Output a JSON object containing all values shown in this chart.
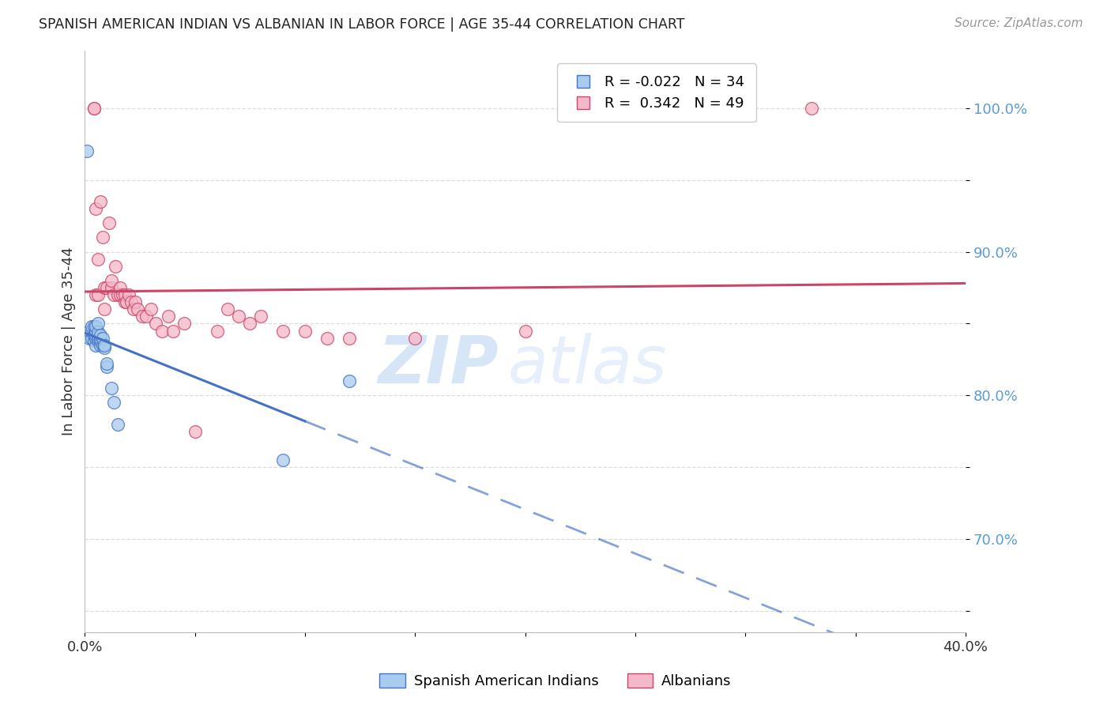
{
  "title": "SPANISH AMERICAN INDIAN VS ALBANIAN IN LABOR FORCE | AGE 35-44 CORRELATION CHART",
  "source": "Source: ZipAtlas.com",
  "ylabel": "In Labor Force | Age 35-44",
  "xmin": 0.0,
  "xmax": 0.4,
  "ymin": 0.635,
  "ymax": 1.04,
  "blue_R": -0.022,
  "blue_N": 34,
  "pink_R": 0.342,
  "pink_N": 49,
  "blue_label": "Spanish American Indians",
  "pink_label": "Albanians",
  "blue_color": "#A8CCEE",
  "pink_color": "#F5B8C8",
  "blue_line_color": "#4472C4",
  "pink_line_color": "#CC4466",
  "blue_scatter_x": [
    0.001,
    0.002,
    0.002,
    0.003,
    0.003,
    0.003,
    0.004,
    0.004,
    0.004,
    0.005,
    0.005,
    0.005,
    0.005,
    0.005,
    0.006,
    0.006,
    0.006,
    0.006,
    0.006,
    0.007,
    0.007,
    0.007,
    0.007,
    0.008,
    0.008,
    0.009,
    0.009,
    0.01,
    0.01,
    0.012,
    0.013,
    0.015,
    0.09,
    0.12
  ],
  "blue_scatter_y": [
    0.97,
    0.84,
    0.845,
    0.84,
    0.845,
    0.848,
    0.838,
    0.842,
    0.848,
    0.835,
    0.84,
    0.842,
    0.845,
    0.848,
    0.838,
    0.84,
    0.842,
    0.844,
    0.85,
    0.835,
    0.838,
    0.84,
    0.842,
    0.835,
    0.84,
    0.833,
    0.835,
    0.82,
    0.822,
    0.805,
    0.795,
    0.78,
    0.755,
    0.81
  ],
  "pink_scatter_x": [
    0.004,
    0.004,
    0.005,
    0.005,
    0.006,
    0.006,
    0.007,
    0.008,
    0.009,
    0.009,
    0.01,
    0.011,
    0.012,
    0.012,
    0.013,
    0.014,
    0.015,
    0.016,
    0.016,
    0.017,
    0.018,
    0.018,
    0.019,
    0.02,
    0.021,
    0.022,
    0.023,
    0.024,
    0.026,
    0.028,
    0.03,
    0.032,
    0.035,
    0.038,
    0.04,
    0.045,
    0.05,
    0.06,
    0.065,
    0.07,
    0.075,
    0.08,
    0.09,
    0.1,
    0.11,
    0.12,
    0.15,
    0.2,
    0.33
  ],
  "pink_scatter_y": [
    1.0,
    1.0,
    0.93,
    0.87,
    0.895,
    0.87,
    0.935,
    0.91,
    0.875,
    0.86,
    0.875,
    0.92,
    0.875,
    0.88,
    0.87,
    0.89,
    0.87,
    0.87,
    0.875,
    0.87,
    0.865,
    0.87,
    0.865,
    0.87,
    0.865,
    0.86,
    0.865,
    0.86,
    0.855,
    0.855,
    0.86,
    0.85,
    0.845,
    0.855,
    0.845,
    0.85,
    0.775,
    0.845,
    0.86,
    0.855,
    0.85,
    0.855,
    0.845,
    0.845,
    0.84,
    0.84,
    0.84,
    0.845,
    1.0
  ],
  "watermark_text": "ZIP",
  "watermark_text2": "atlas",
  "background_color": "#FFFFFF",
  "grid_color": "#DDDDDD",
  "tick_label_color": "#5B9BD5",
  "ytick_vals": [
    0.65,
    0.7,
    0.75,
    0.8,
    0.85,
    0.9,
    0.95,
    1.0
  ],
  "ytick_labels": [
    "",
    "70.0%",
    "",
    "80.0%",
    "",
    "90.0%",
    "",
    "100.0%"
  ],
  "xtick_positions": [
    0.0,
    0.05,
    0.1,
    0.15,
    0.2,
    0.25,
    0.3,
    0.35,
    0.4
  ],
  "xtick_labels_show": [
    "0.0%",
    "",
    "",
    "",
    "",
    "",
    "",
    "",
    "40.0%"
  ]
}
